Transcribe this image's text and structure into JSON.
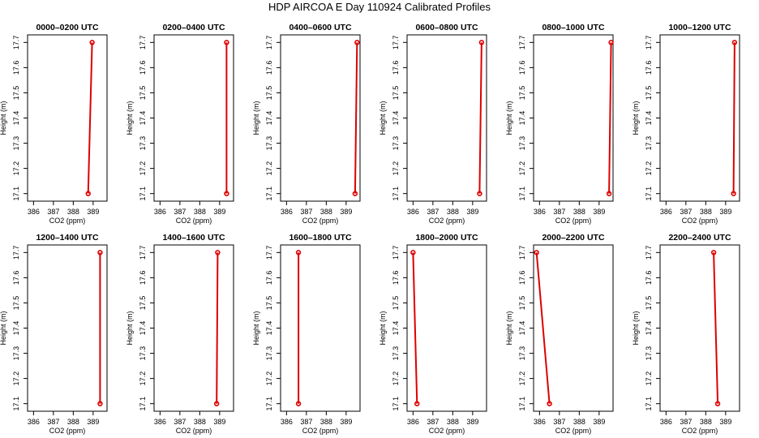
{
  "title": "HDP AIRCOA E  Day 110924  Calibrated Profiles",
  "colors": {
    "series": "#dd0000",
    "axis": "#000000"
  },
  "chart_data": [
    {
      "type": "line",
      "title": "0000–0200 UTC",
      "xlabel": "CO2 (ppm)",
      "ylabel": "Height (m)",
      "xlim": [
        385.7,
        389.7
      ],
      "ylim": [
        17.07,
        17.73
      ],
      "xticks": [
        386,
        387,
        388,
        389
      ],
      "yticks": [
        17.1,
        17.2,
        17.3,
        17.4,
        17.5,
        17.6,
        17.7
      ],
      "series": [
        {
          "x": [
            388.75,
            388.95
          ],
          "y": [
            17.1,
            17.7
          ]
        }
      ]
    },
    {
      "type": "line",
      "title": "0200–0400 UTC",
      "xlabel": "CO2 (ppm)",
      "ylabel": "Height (m)",
      "xlim": [
        385.7,
        389.7
      ],
      "ylim": [
        17.07,
        17.73
      ],
      "xticks": [
        386,
        387,
        388,
        389
      ],
      "yticks": [
        17.1,
        17.2,
        17.3,
        17.4,
        17.5,
        17.6,
        17.7
      ],
      "series": [
        {
          "x": [
            389.35,
            389.35
          ],
          "y": [
            17.1,
            17.7
          ]
        }
      ]
    },
    {
      "type": "line",
      "title": "0400–0600 UTC",
      "xlabel": "CO2 (ppm)",
      "ylabel": "Height (m)",
      "xlim": [
        385.7,
        389.7
      ],
      "ylim": [
        17.07,
        17.73
      ],
      "xticks": [
        386,
        387,
        388,
        389
      ],
      "yticks": [
        17.1,
        17.2,
        17.3,
        17.4,
        17.5,
        17.6,
        17.7
      ],
      "series": [
        {
          "x": [
            389.45,
            389.55
          ],
          "y": [
            17.1,
            17.7
          ]
        }
      ]
    },
    {
      "type": "line",
      "title": "0600–0800 UTC",
      "xlabel": "CO2 (ppm)",
      "ylabel": "Height (m)",
      "xlim": [
        385.7,
        389.7
      ],
      "ylim": [
        17.07,
        17.73
      ],
      "xticks": [
        386,
        387,
        388,
        389
      ],
      "yticks": [
        17.1,
        17.2,
        17.3,
        17.4,
        17.5,
        17.6,
        17.7
      ],
      "series": [
        {
          "x": [
            389.35,
            389.45
          ],
          "y": [
            17.1,
            17.7
          ]
        }
      ]
    },
    {
      "type": "line",
      "title": "0800–1000 UTC",
      "xlabel": "CO2 (ppm)",
      "ylabel": "Height (m)",
      "xlim": [
        385.7,
        389.7
      ],
      "ylim": [
        17.07,
        17.73
      ],
      "xticks": [
        386,
        387,
        388,
        389
      ],
      "yticks": [
        17.1,
        17.2,
        17.3,
        17.4,
        17.5,
        17.6,
        17.7
      ],
      "series": [
        {
          "x": [
            389.5,
            389.6
          ],
          "y": [
            17.1,
            17.7
          ]
        }
      ]
    },
    {
      "type": "line",
      "title": "1000–1200 UTC",
      "xlabel": "CO2 (ppm)",
      "ylabel": "Height (m)",
      "xlim": [
        385.7,
        389.7
      ],
      "ylim": [
        17.07,
        17.73
      ],
      "xticks": [
        386,
        387,
        388,
        389
      ],
      "yticks": [
        17.1,
        17.2,
        17.3,
        17.4,
        17.5,
        17.6,
        17.7
      ],
      "series": [
        {
          "x": [
            389.4,
            389.45
          ],
          "y": [
            17.1,
            17.7
          ]
        }
      ]
    },
    {
      "type": "line",
      "title": "1200–1400 UTC",
      "xlabel": "CO2 (ppm)",
      "ylabel": "Height (m)",
      "xlim": [
        385.7,
        389.7
      ],
      "ylim": [
        17.07,
        17.73
      ],
      "xticks": [
        386,
        387,
        388,
        389
      ],
      "yticks": [
        17.1,
        17.2,
        17.3,
        17.4,
        17.5,
        17.6,
        17.7
      ],
      "series": [
        {
          "x": [
            389.35,
            389.35
          ],
          "y": [
            17.1,
            17.7
          ]
        }
      ]
    },
    {
      "type": "line",
      "title": "1400–1600 UTC",
      "xlabel": "CO2 (ppm)",
      "ylabel": "Height (m)",
      "xlim": [
        385.7,
        389.7
      ],
      "ylim": [
        17.07,
        17.73
      ],
      "xticks": [
        386,
        387,
        388,
        389
      ],
      "yticks": [
        17.1,
        17.2,
        17.3,
        17.4,
        17.5,
        17.6,
        17.7
      ],
      "series": [
        {
          "x": [
            388.85,
            388.9
          ],
          "y": [
            17.1,
            17.7
          ]
        }
      ]
    },
    {
      "type": "line",
      "title": "1600–1800 UTC",
      "xlabel": "CO2 (ppm)",
      "ylabel": "Height (m)",
      "xlim": [
        385.7,
        389.7
      ],
      "ylim": [
        17.07,
        17.73
      ],
      "xticks": [
        386,
        387,
        388,
        389
      ],
      "yticks": [
        17.1,
        17.2,
        17.3,
        17.4,
        17.5,
        17.6,
        17.7
      ],
      "series": [
        {
          "x": [
            386.6,
            386.6
          ],
          "y": [
            17.1,
            17.7
          ]
        }
      ]
    },
    {
      "type": "line",
      "title": "1800–2000 UTC",
      "xlabel": "CO2 (ppm)",
      "ylabel": "Height (m)",
      "xlim": [
        385.7,
        389.7
      ],
      "ylim": [
        17.07,
        17.73
      ],
      "xticks": [
        386,
        387,
        388,
        389
      ],
      "yticks": [
        17.1,
        17.2,
        17.3,
        17.4,
        17.5,
        17.6,
        17.7
      ],
      "series": [
        {
          "x": [
            386.2,
            386.0
          ],
          "y": [
            17.1,
            17.7
          ]
        }
      ]
    },
    {
      "type": "line",
      "title": "2000–2200 UTC",
      "xlabel": "CO2 (ppm)",
      "ylabel": "Height (m)",
      "xlim": [
        385.7,
        389.7
      ],
      "ylim": [
        17.07,
        17.73
      ],
      "xticks": [
        386,
        387,
        388,
        389
      ],
      "yticks": [
        17.1,
        17.2,
        17.3,
        17.4,
        17.5,
        17.6,
        17.7
      ],
      "series": [
        {
          "x": [
            386.5,
            385.85
          ],
          "y": [
            17.1,
            17.7
          ]
        }
      ]
    },
    {
      "type": "line",
      "title": "2200–2400 UTC",
      "xlabel": "CO2 (ppm)",
      "ylabel": "Height (m)",
      "xlim": [
        385.7,
        389.7
      ],
      "ylim": [
        17.07,
        17.73
      ],
      "xticks": [
        386,
        387,
        388,
        389
      ],
      "yticks": [
        17.1,
        17.2,
        17.3,
        17.4,
        17.5,
        17.6,
        17.7
      ],
      "series": [
        {
          "x": [
            388.6,
            388.4
          ],
          "y": [
            17.1,
            17.7
          ]
        }
      ]
    }
  ]
}
